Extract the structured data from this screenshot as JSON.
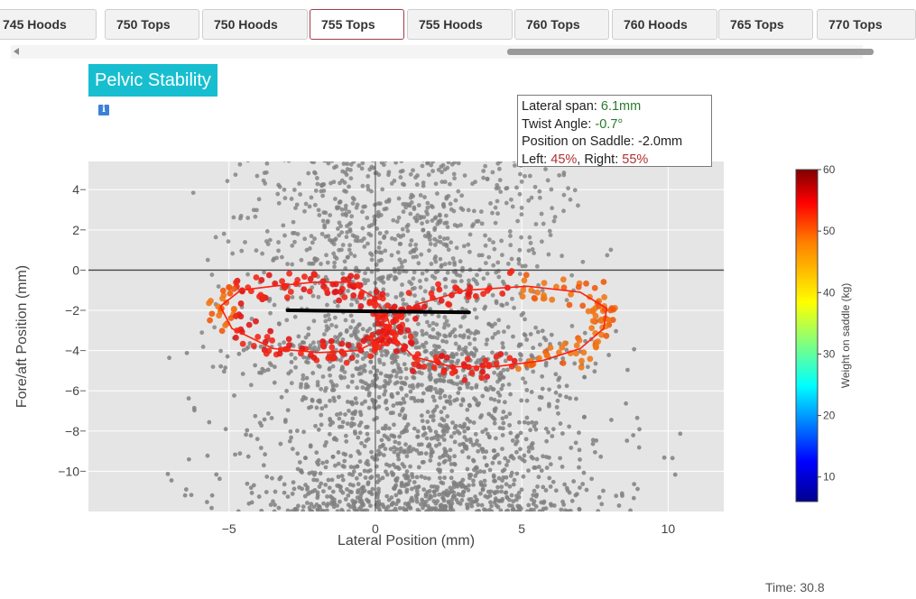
{
  "tabs": [
    {
      "label": "745 Hoods",
      "active": false
    },
    {
      "label": "750 Tops",
      "active": false
    },
    {
      "label": "750 Hoods",
      "active": false
    },
    {
      "label": "755 Tops",
      "active": true
    },
    {
      "label": "755 Hoods",
      "active": false
    },
    {
      "label": "760 Tops",
      "active": false
    },
    {
      "label": "760 Hoods",
      "active": false
    },
    {
      "label": "765 Tops",
      "active": false
    },
    {
      "label": "770 Tops",
      "active": false
    }
  ],
  "title": "Pelvic Stability",
  "info_icon": "i",
  "infobox": {
    "lateral_span_label": "Lateral span: ",
    "lateral_span_value": "6.1mm",
    "twist_angle_label": "Twist Angle: ",
    "twist_angle_value": "-0.7°",
    "position_label": "Position on Saddle: ",
    "position_value": "-2.0mm",
    "left_label": "Left: ",
    "left_value": "45%",
    "sep": ", ",
    "right_label": "Right: ",
    "right_value": "55%"
  },
  "time_label": "Time: 30.8",
  "colors": {
    "title_bg": "#17becf",
    "plot_bg": "#e5e5e5",
    "gray_points": "#808080",
    "trace": "#ff0000",
    "bar": "#000000"
  },
  "chart_data": {
    "type": "scatter",
    "xlabel": "Lateral Position (mm)",
    "ylabel": "Fore/aft Position (mm)",
    "xlim": [
      -9.8,
      11.9
    ],
    "ylim": [
      -12.0,
      5.4
    ],
    "xticks": [
      -5,
      0,
      5,
      10
    ],
    "yticks": [
      4,
      2,
      0,
      -2,
      -4,
      -6,
      -8,
      -10
    ],
    "xtick_labels": [
      "−5",
      "0",
      "5",
      "10"
    ],
    "ytick_labels": [
      "4",
      "2",
      "0",
      "−2",
      "−4",
      "−6",
      "−8",
      "−10"
    ],
    "grid": true,
    "background_points": {
      "count": 2600,
      "x_range": [
        -7,
        10.5
      ],
      "y_range": [
        -12,
        5.4
      ],
      "color": "#808080"
    },
    "trace_loop": {
      "x": [
        -5.3,
        -4.6,
        -3.5,
        -2.1,
        -0.9,
        -0.1,
        0.4,
        0.6,
        1.3,
        2.6,
        4.1,
        5.7,
        7.0,
        7.8,
        7.9,
        7.0,
        5.2,
        3.1,
        1.4,
        0.6,
        0.1,
        -0.6,
        -1.9,
        -3.5,
        -4.9,
        -5.3
      ],
      "y": [
        -1.8,
        -1.0,
        -0.8,
        -0.6,
        -0.6,
        -1.3,
        -2.3,
        -3.3,
        -4.3,
        -4.8,
        -4.8,
        -4.5,
        -3.9,
        -2.9,
        -1.9,
        -1.1,
        -0.8,
        -1.0,
        -1.7,
        -2.6,
        -3.5,
        -4.0,
        -4.1,
        -3.9,
        -2.9,
        -1.8
      ],
      "color": "#ff0000"
    },
    "pelvis_bar": {
      "x": [
        -3.0,
        3.2
      ],
      "y": [
        -2.0,
        -2.1
      ]
    },
    "colorbar": {
      "label": "Weight on saddle (kg)",
      "range": [
        6,
        60
      ],
      "ticks": [
        10,
        20,
        30,
        40,
        50,
        60
      ],
      "tick_labels": [
        "10",
        "20",
        "30",
        "40",
        "50",
        "60"
      ],
      "colorscale": [
        "#00008f",
        "#0000ff",
        "#00ffff",
        "#ffff00",
        "#ff8000",
        "#ff0000",
        "#800000"
      ]
    }
  }
}
